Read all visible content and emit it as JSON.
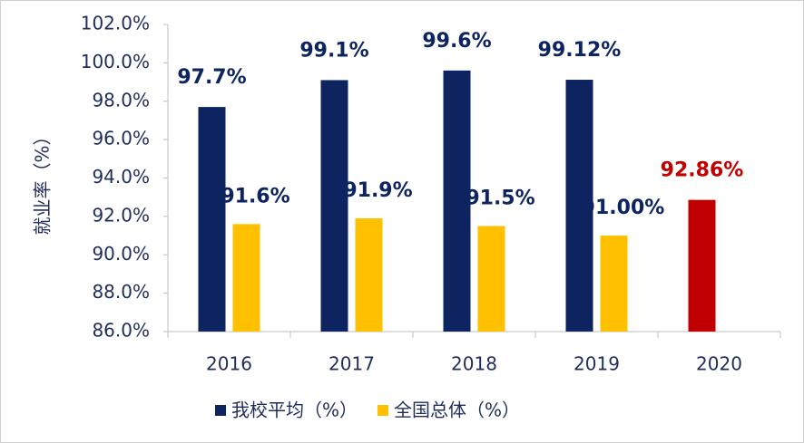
{
  "chart_data": {
    "type": "bar",
    "y_label": "就业率（%）",
    "categories": [
      "2016",
      "2017",
      "2018",
      "2019",
      "2020"
    ],
    "series": [
      {
        "name": "我校平均（%）",
        "color": "#0d2461",
        "colors": [
          "#0d2461",
          "#0d2461",
          "#0d2461",
          "#0d2461",
          "#c00000"
        ],
        "values": [
          97.7,
          99.1,
          99.6,
          99.12,
          92.86
        ],
        "value_labels": [
          "97.7%",
          "99.1%",
          "99.6%",
          "99.12%",
          "92.86%"
        ]
      },
      {
        "name": "全国总体（%）",
        "color": "#ffc000",
        "values": [
          91.6,
          91.9,
          91.5,
          91.0,
          null
        ],
        "value_labels": [
          "91.6%",
          "91.9%",
          "91.5%",
          "91.00%",
          null
        ]
      }
    ],
    "ylim": [
      86,
      102
    ],
    "yticks": [
      {
        "value": 86,
        "label": "86.0%"
      },
      {
        "value": 88,
        "label": "88.0%"
      },
      {
        "value": 90,
        "label": "90.0%"
      },
      {
        "value": 92,
        "label": "92.0%"
      },
      {
        "value": 94,
        "label": "94.0%"
      },
      {
        "value": 96,
        "label": "96.0%"
      },
      {
        "value": 98,
        "label": "98.0%"
      },
      {
        "value": 100,
        "label": "100.0%"
      },
      {
        "value": 102,
        "label": "102.0%"
      }
    ],
    "grid": false
  }
}
